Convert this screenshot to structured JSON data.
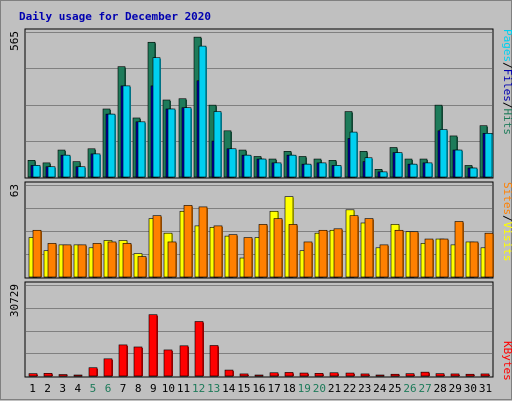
{
  "chart_data": {
    "type": "bar",
    "title": "Daily usage for December 2020",
    "categories": [
      "1",
      "2",
      "3",
      "4",
      "5",
      "6",
      "7",
      "8",
      "9",
      "10",
      "11",
      "12",
      "13",
      "14",
      "15",
      "16",
      "17",
      "18",
      "19",
      "20",
      "21",
      "22",
      "23",
      "24",
      "25",
      "26",
      "27",
      "28",
      "29",
      "30",
      "31"
    ],
    "weekend_days": [
      "5",
      "6",
      "12",
      "13",
      "19",
      "20",
      "26",
      "27"
    ],
    "panels": [
      {
        "ymax": 565,
        "ymax_label": "565",
        "legend": [
          "Pages",
          "/",
          "Files",
          "/",
          "Hits"
        ],
        "series": [
          {
            "name": "Hits",
            "color": "#1e7b5a",
            "values": [
              65,
              55,
              105,
              60,
              110,
              265,
              430,
              230,
              525,
              300,
              305,
              545,
              280,
              180,
              105,
              80,
              70,
              100,
              80,
              70,
              65,
              255,
              100,
              30,
              115,
              70,
              70,
              280,
              160,
              45,
              200
            ]
          },
          {
            "name": "Files",
            "color": "#0000b0",
            "values": [
              45,
              40,
              85,
              40,
              90,
              245,
              355,
              215,
              355,
              265,
              270,
              375,
              140,
              110,
              85,
              70,
              55,
              85,
              50,
              55,
              45,
              150,
              60,
              20,
              95,
              50,
              55,
              180,
              105,
              35,
              170
            ]
          },
          {
            "name": "Pages",
            "color": "#00d0f0",
            "values": [
              45,
              40,
              85,
              40,
              90,
              245,
              355,
              215,
              465,
              265,
              270,
              510,
              255,
              110,
              85,
              70,
              55,
              85,
              50,
              55,
              45,
              175,
              75,
              20,
              95,
              50,
              55,
              185,
              105,
              35,
              170
            ]
          }
        ]
      },
      {
        "ymax": 63,
        "ymax_label": "63",
        "legend": [
          "Sites",
          "/",
          "Visits"
        ],
        "series": [
          {
            "name": "Visits",
            "color": "#ffff00",
            "values": [
              27,
              18,
              22,
              22,
              20,
              25,
              25,
              16,
              40,
              30,
              45,
              35,
              34,
              28,
              13,
              27,
              45,
              55,
              18,
              30,
              32,
              46,
              37,
              20,
              36,
              31,
              23,
              26,
              22,
              24,
              20
            ]
          },
          {
            "name": "Sites",
            "color": "#ff8000",
            "values": [
              32,
              23,
              22,
              22,
              23,
              24,
              23,
              14,
              42,
              24,
              49,
              48,
              35,
              29,
              27,
              36,
              40,
              36,
              24,
              32,
              33,
              42,
              40,
              22,
              32,
              31,
              26,
              26,
              38,
              24,
              30
            ]
          }
        ]
      },
      {
        "ymax": 30729,
        "ymax_label": "30729",
        "legend": [
          "KBytes"
        ],
        "series": [
          {
            "name": "KBytes",
            "color": "#ff0000",
            "values": [
              800,
              900,
              500,
              300,
              2800,
              5800,
              10500,
              9800,
              20700,
              8800,
              10200,
              18400,
              10300,
              2000,
              700,
              300,
              1100,
              1200,
              1000,
              900,
              1100,
              1000,
              700,
              300,
              600,
              800,
              1300,
              800,
              700,
              600,
              700
            ]
          }
        ]
      }
    ]
  }
}
